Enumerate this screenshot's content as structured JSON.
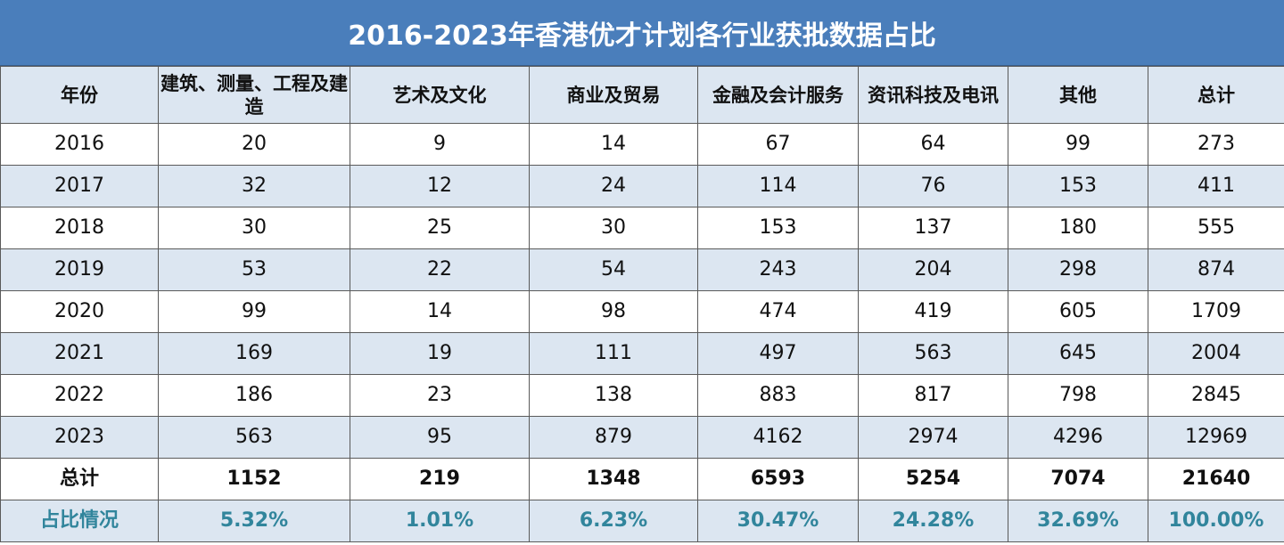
{
  "title": "2016-2023年香港优才计划各行业获批数据占比",
  "table": {
    "header": [
      "年份",
      "建筑、测量、工程及建造",
      "艺术及文化",
      "商业及贸易",
      "金融及会计服务",
      "资讯科技及电讯",
      "其他",
      "总计"
    ],
    "rows": [
      [
        2016,
        20,
        9,
        14,
        67,
        64,
        99,
        273
      ],
      [
        2017,
        32,
        12,
        24,
        114,
        76,
        153,
        411
      ],
      [
        2018,
        30,
        25,
        30,
        153,
        137,
        180,
        555
      ],
      [
        2019,
        53,
        22,
        54,
        243,
        204,
        298,
        874
      ],
      [
        2020,
        99,
        14,
        98,
        474,
        419,
        605,
        1709
      ],
      [
        2021,
        169,
        19,
        111,
        497,
        563,
        645,
        2004
      ],
      [
        2022,
        186,
        23,
        138,
        883,
        817,
        798,
        2845
      ],
      [
        2023,
        563,
        95,
        879,
        4162,
        2974,
        4296,
        12969
      ]
    ],
    "total": [
      "总计",
      1152,
      219,
      1348,
      6593,
      5254,
      7074,
      21640
    ],
    "share": [
      "占比情况",
      "5.32%",
      "1.01%",
      "6.23%",
      "30.47%",
      "24.28%",
      "32.69%",
      "100.00%"
    ]
  }
}
